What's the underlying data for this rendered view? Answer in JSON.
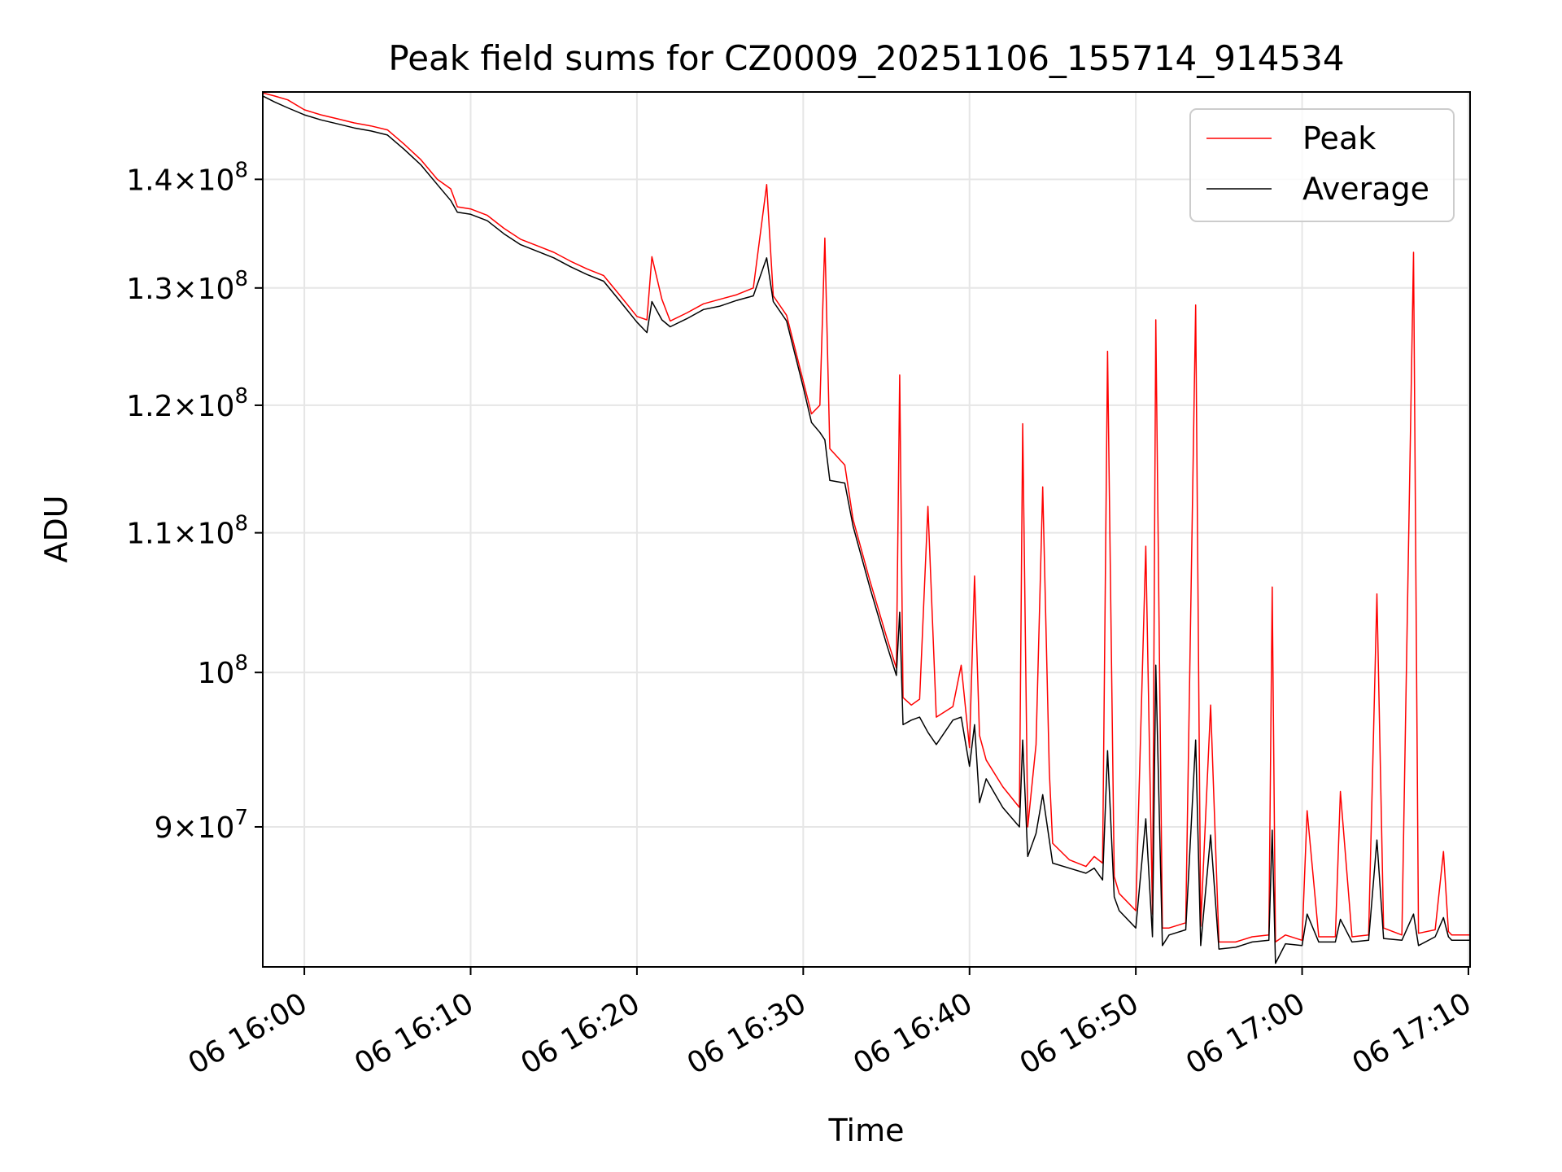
{
  "chart_data": {
    "type": "line",
    "title": "Peak field sums for CZ0009_20251106_155714_914534",
    "xlabel": "Time",
    "ylabel": "ADU",
    "yscale": "log",
    "grid": true,
    "legend_position": "top-right",
    "xlim_minutes": [
      57.5,
      130.1
    ],
    "ylim": [
      81800000,
      148600000
    ],
    "x_ticks": [
      {
        "minute": 60,
        "label": "06 16:00"
      },
      {
        "minute": 70,
        "label": "06 16:10"
      },
      {
        "minute": 80,
        "label": "06 16:20"
      },
      {
        "minute": 90,
        "label": "06 16:30"
      },
      {
        "minute": 100,
        "label": "06 16:40"
      },
      {
        "minute": 110,
        "label": "06 16:50"
      },
      {
        "minute": 120,
        "label": "06 17:00"
      },
      {
        "minute": 130,
        "label": "06 17:10"
      }
    ],
    "y_ticks": [
      {
        "value": 90000000,
        "mant": "9",
        "exp": "7"
      },
      {
        "value": 100000000,
        "mant": "",
        "exp": "8"
      },
      {
        "value": 110000000,
        "mant": "1.1",
        "exp": "8"
      },
      {
        "value": 120000000,
        "mant": "1.2",
        "exp": "8"
      },
      {
        "value": 130000000,
        "mant": "1.3",
        "exp": "8"
      },
      {
        "value": 140000000,
        "mant": "1.4",
        "exp": "8"
      }
    ],
    "series": [
      {
        "name": "Peak",
        "color": "#ff0000",
        "points": [
          [
            57.5,
            148.5
          ],
          [
            58.2,
            148.2
          ],
          [
            59.0,
            147.8
          ],
          [
            60.0,
            146.8
          ],
          [
            61.0,
            146.3
          ],
          [
            62.0,
            145.9
          ],
          [
            63.0,
            145.5
          ],
          [
            64.0,
            145.2
          ],
          [
            65.0,
            144.8
          ],
          [
            66.0,
            143.4
          ],
          [
            67.0,
            141.9
          ],
          [
            68.0,
            140.0
          ],
          [
            68.8,
            139.1
          ],
          [
            69.2,
            137.4
          ],
          [
            70.0,
            137.2
          ],
          [
            71.0,
            136.6
          ],
          [
            72.0,
            135.4
          ],
          [
            73.0,
            134.4
          ],
          [
            74.0,
            133.8
          ],
          [
            75.0,
            133.2
          ],
          [
            76.0,
            132.4
          ],
          [
            77.0,
            131.7
          ],
          [
            78.0,
            131.1
          ],
          [
            79.0,
            129.3
          ],
          [
            80.0,
            127.5
          ],
          [
            80.6,
            127.2
          ],
          [
            80.9,
            132.8
          ],
          [
            81.5,
            129.0
          ],
          [
            82.0,
            127.1
          ],
          [
            83.0,
            127.8
          ],
          [
            84.0,
            128.6
          ],
          [
            85.0,
            129.0
          ],
          [
            86.0,
            129.4
          ],
          [
            87.0,
            130.0
          ],
          [
            87.8,
            139.5
          ],
          [
            88.2,
            129.3
          ],
          [
            89.0,
            127.6
          ],
          [
            90.0,
            122.0
          ],
          [
            90.5,
            119.3
          ],
          [
            91.0,
            120.0
          ],
          [
            91.3,
            134.5
          ],
          [
            91.6,
            116.5
          ],
          [
            92.5,
            115.2
          ],
          [
            93.0,
            111.0
          ],
          [
            94.0,
            106.5
          ],
          [
            95.0,
            102.5
          ],
          [
            95.6,
            100.3
          ],
          [
            95.8,
            122.5
          ],
          [
            96.0,
            98.3
          ],
          [
            96.5,
            97.8
          ],
          [
            97.0,
            98.2
          ],
          [
            97.5,
            112.0
          ],
          [
            98.0,
            97.0
          ],
          [
            99.0,
            97.7
          ],
          [
            99.5,
            100.5
          ],
          [
            100.0,
            95.0
          ],
          [
            100.3,
            106.8
          ],
          [
            100.6,
            95.8
          ],
          [
            101.0,
            94.2
          ],
          [
            102.0,
            92.5
          ],
          [
            103.0,
            91.2
          ],
          [
            103.2,
            118.5
          ],
          [
            103.5,
            90.0
          ],
          [
            104.0,
            95.2
          ],
          [
            104.4,
            113.5
          ],
          [
            104.8,
            93.5
          ],
          [
            105.0,
            89.0
          ],
          [
            106.0,
            88.0
          ],
          [
            107.0,
            87.6
          ],
          [
            107.5,
            88.2
          ],
          [
            108.0,
            87.8
          ],
          [
            108.3,
            124.5
          ],
          [
            108.7,
            87.0
          ],
          [
            109.0,
            86.0
          ],
          [
            110.0,
            85.0
          ],
          [
            110.6,
            109.0
          ],
          [
            111.0,
            84.8
          ],
          [
            111.2,
            127.2
          ],
          [
            111.6,
            84.0
          ],
          [
            112.0,
            84.0
          ],
          [
            113.0,
            84.3
          ],
          [
            113.6,
            128.5
          ],
          [
            113.9,
            84.1
          ],
          [
            114.5,
            97.8
          ],
          [
            115.0,
            83.2
          ],
          [
            116.0,
            83.2
          ],
          [
            117.0,
            83.5
          ],
          [
            118.0,
            83.6
          ],
          [
            118.2,
            106.0
          ],
          [
            118.4,
            83.2
          ],
          [
            119.0,
            83.6
          ],
          [
            120.0,
            83.3
          ],
          [
            120.3,
            91.0
          ],
          [
            121.0,
            83.5
          ],
          [
            122.0,
            83.5
          ],
          [
            122.3,
            92.2
          ],
          [
            123.0,
            83.5
          ],
          [
            124.0,
            83.6
          ],
          [
            124.5,
            105.5
          ],
          [
            124.9,
            84.0
          ],
          [
            126.0,
            83.6
          ],
          [
            126.7,
            133.2
          ],
          [
            127.0,
            83.7
          ],
          [
            128.0,
            83.9
          ],
          [
            128.5,
            88.5
          ],
          [
            128.8,
            83.8
          ],
          [
            129.0,
            83.6
          ],
          [
            130.1,
            83.6
          ]
        ]
      },
      {
        "name": "Average",
        "color": "#000000",
        "points": [
          [
            57.5,
            148.2
          ],
          [
            58.2,
            147.6
          ],
          [
            59.0,
            147.0
          ],
          [
            60.0,
            146.3
          ],
          [
            61.0,
            145.8
          ],
          [
            62.0,
            145.4
          ],
          [
            63.0,
            145.0
          ],
          [
            64.0,
            144.7
          ],
          [
            65.0,
            144.3
          ],
          [
            66.0,
            142.9
          ],
          [
            67.0,
            141.4
          ],
          [
            68.0,
            139.5
          ],
          [
            68.8,
            138.0
          ],
          [
            69.2,
            136.9
          ],
          [
            70.0,
            136.7
          ],
          [
            71.0,
            136.1
          ],
          [
            72.0,
            134.9
          ],
          [
            73.0,
            133.9
          ],
          [
            74.0,
            133.3
          ],
          [
            75.0,
            132.7
          ],
          [
            76.0,
            131.9
          ],
          [
            77.0,
            131.2
          ],
          [
            78.0,
            130.6
          ],
          [
            79.0,
            128.8
          ],
          [
            80.0,
            127.0
          ],
          [
            80.6,
            126.1
          ],
          [
            80.9,
            128.8
          ],
          [
            81.5,
            127.2
          ],
          [
            82.0,
            126.6
          ],
          [
            83.0,
            127.3
          ],
          [
            84.0,
            128.1
          ],
          [
            85.0,
            128.4
          ],
          [
            86.0,
            128.9
          ],
          [
            87.0,
            129.3
          ],
          [
            87.8,
            132.7
          ],
          [
            88.2,
            128.8
          ],
          [
            89.0,
            127.1
          ],
          [
            90.0,
            121.5
          ],
          [
            90.5,
            118.6
          ],
          [
            91.0,
            117.8
          ],
          [
            91.3,
            117.2
          ],
          [
            91.6,
            114.0
          ],
          [
            92.5,
            113.8
          ],
          [
            93.0,
            110.5
          ],
          [
            94.0,
            106.0
          ],
          [
            95.0,
            102.0
          ],
          [
            95.6,
            99.8
          ],
          [
            95.8,
            104.2
          ],
          [
            96.0,
            96.5
          ],
          [
            96.5,
            96.8
          ],
          [
            97.0,
            97.0
          ],
          [
            97.5,
            96.0
          ],
          [
            98.0,
            95.2
          ],
          [
            99.0,
            96.8
          ],
          [
            99.5,
            97.0
          ],
          [
            100.0,
            93.8
          ],
          [
            100.3,
            96.5
          ],
          [
            100.6,
            91.5
          ],
          [
            101.0,
            93.0
          ],
          [
            102.0,
            91.2
          ],
          [
            103.0,
            90.0
          ],
          [
            103.2,
            95.5
          ],
          [
            103.5,
            88.2
          ],
          [
            104.0,
            89.6
          ],
          [
            104.4,
            92.0
          ],
          [
            104.8,
            89.2
          ],
          [
            105.0,
            87.8
          ],
          [
            106.0,
            87.5
          ],
          [
            107.0,
            87.2
          ],
          [
            107.5,
            87.5
          ],
          [
            108.0,
            86.8
          ],
          [
            108.3,
            94.8
          ],
          [
            108.7,
            85.8
          ],
          [
            109.0,
            85.0
          ],
          [
            110.0,
            84.0
          ],
          [
            110.6,
            90.5
          ],
          [
            111.0,
            83.5
          ],
          [
            111.2,
            100.5
          ],
          [
            111.6,
            83.0
          ],
          [
            112.0,
            83.6
          ],
          [
            113.0,
            83.9
          ],
          [
            113.6,
            95.5
          ],
          [
            113.9,
            83.0
          ],
          [
            114.5,
            89.5
          ],
          [
            115.0,
            82.8
          ],
          [
            116.0,
            82.9
          ],
          [
            117.0,
            83.2
          ],
          [
            118.0,
            83.3
          ],
          [
            118.2,
            89.8
          ],
          [
            118.4,
            82.0
          ],
          [
            119.0,
            83.1
          ],
          [
            120.0,
            83.0
          ],
          [
            120.3,
            84.8
          ],
          [
            121.0,
            83.2
          ],
          [
            122.0,
            83.2
          ],
          [
            122.3,
            84.5
          ],
          [
            123.0,
            83.2
          ],
          [
            124.0,
            83.3
          ],
          [
            124.5,
            89.2
          ],
          [
            124.9,
            83.4
          ],
          [
            126.0,
            83.3
          ],
          [
            126.7,
            84.8
          ],
          [
            127.0,
            83.0
          ],
          [
            128.0,
            83.5
          ],
          [
            128.5,
            84.6
          ],
          [
            128.8,
            83.5
          ],
          [
            129.0,
            83.3
          ],
          [
            130.1,
            83.3
          ]
        ]
      }
    ]
  }
}
